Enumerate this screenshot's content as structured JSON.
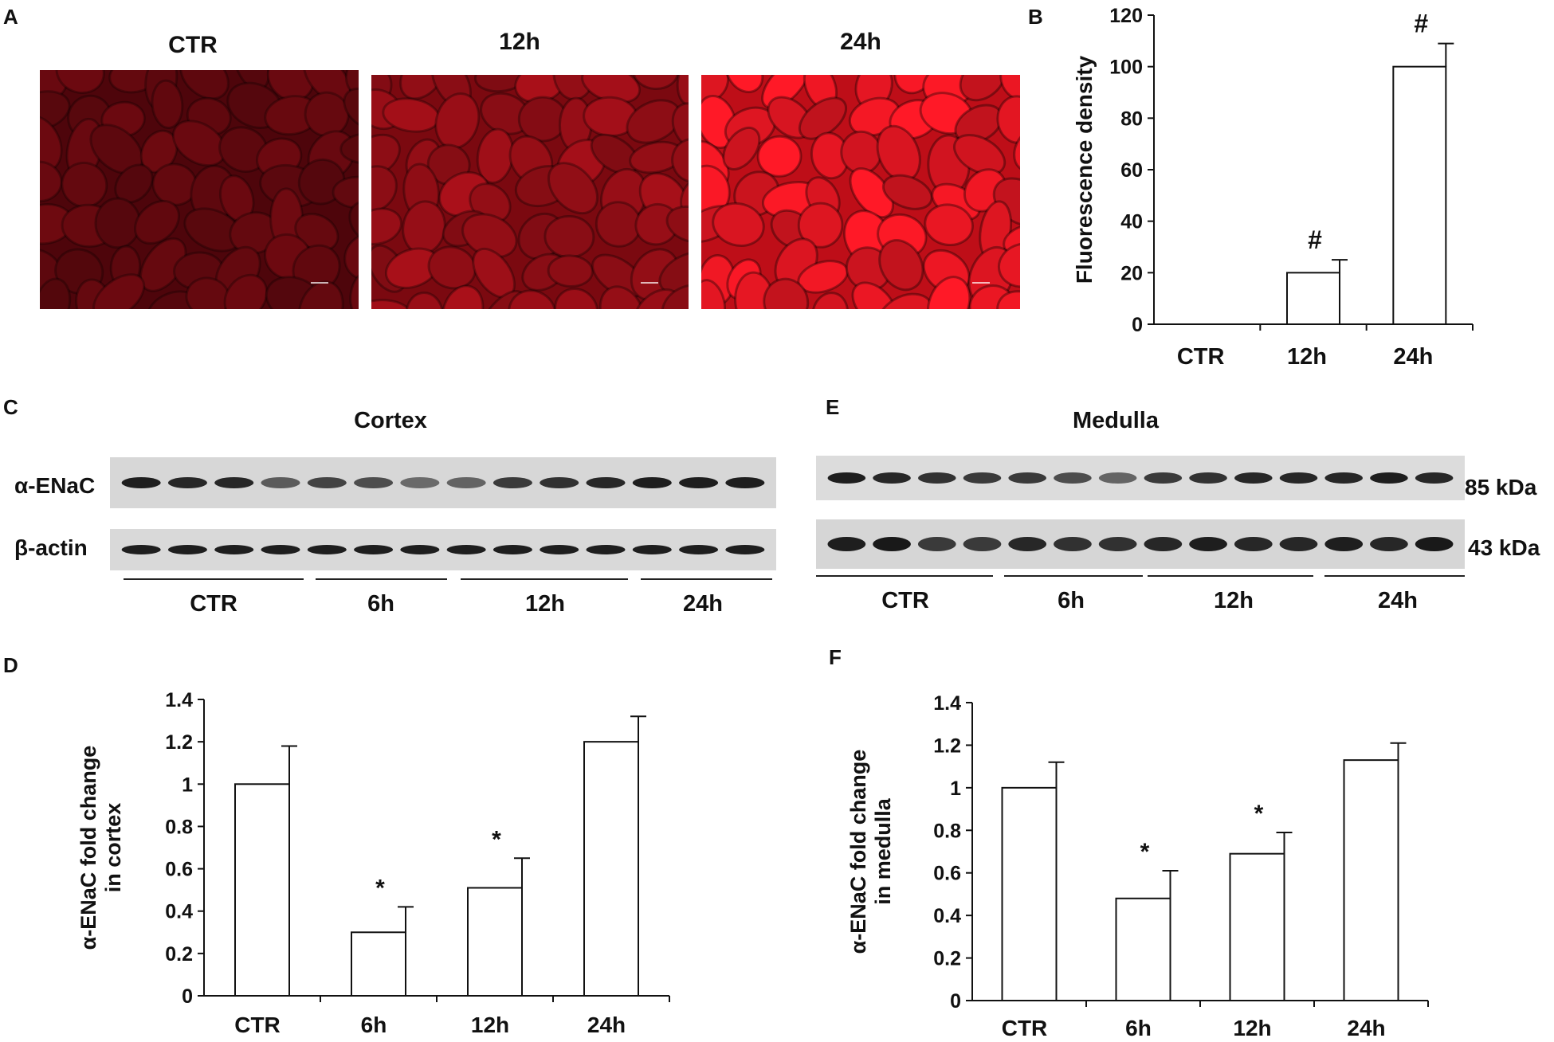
{
  "panels": {
    "A": {
      "letter": "A",
      "images": [
        {
          "title": "CTR",
          "level": 0.25
        },
        {
          "title": "12h",
          "level": 0.55
        },
        {
          "title": "24h",
          "level": 1.0
        }
      ]
    },
    "B": {
      "letter": "B"
    },
    "C": {
      "letter": "C",
      "title": "Cortex",
      "rows": [
        "α-ENaC",
        "β-actin"
      ],
      "groups": [
        "CTR",
        "6h",
        "12h",
        "24h"
      ],
      "lane_counts": [
        4,
        3,
        4,
        3
      ]
    },
    "D": {
      "letter": "D"
    },
    "E": {
      "letter": "E",
      "title": "Medulla",
      "markers": [
        "85 kDa",
        "43 kDa"
      ],
      "groups": [
        "CTR",
        "6h",
        "12h",
        "24h"
      ],
      "lane_counts": [
        4,
        3,
        4,
        3
      ]
    },
    "F": {
      "letter": "F"
    }
  },
  "colors": {
    "micro_dark": "#2a0205",
    "micro_red": "#c0101c",
    "bar_fill": "#ffffff",
    "axis": "#111111"
  },
  "chart_data": [
    {
      "id": "B",
      "type": "bar",
      "categories": [
        "CTR",
        "12h",
        "24h"
      ],
      "values": [
        0,
        20,
        100
      ],
      "errors": [
        0,
        5,
        9
      ],
      "annotations": [
        "",
        "#",
        "#"
      ],
      "xlabel": "",
      "ylabel": "Fluorescence density",
      "ylim": [
        0,
        120
      ],
      "yticks": [
        0,
        20,
        40,
        60,
        80,
        100,
        120
      ],
      "grid": false
    },
    {
      "id": "D",
      "type": "bar",
      "categories": [
        "CTR",
        "6h",
        "12h",
        "24h"
      ],
      "values": [
        1.0,
        0.3,
        0.51,
        1.2
      ],
      "errors": [
        0.18,
        0.12,
        0.14,
        0.12
      ],
      "annotations": [
        "",
        "*",
        "*",
        ""
      ],
      "xlabel": "",
      "ylabel": [
        "α-ENaC fold change",
        "in cortex"
      ],
      "ylim": [
        0,
        1.4
      ],
      "yticks": [
        0,
        0.2,
        0.4,
        0.6,
        0.8,
        1,
        1.2,
        1.4
      ],
      "grid": false
    },
    {
      "id": "F",
      "type": "bar",
      "categories": [
        "CTR",
        "6h",
        "12h",
        "24h"
      ],
      "values": [
        1.0,
        0.48,
        0.69,
        1.13
      ],
      "errors": [
        0.12,
        0.13,
        0.1,
        0.08
      ],
      "annotations": [
        "",
        "*",
        "*",
        ""
      ],
      "xlabel": "",
      "ylabel": [
        "α-ENaC fold change",
        "in medulla"
      ],
      "ylim": [
        0,
        1.4
      ],
      "yticks": [
        0,
        0.2,
        0.4,
        0.6,
        0.8,
        1,
        1.2,
        1.4
      ],
      "grid": false
    }
  ]
}
